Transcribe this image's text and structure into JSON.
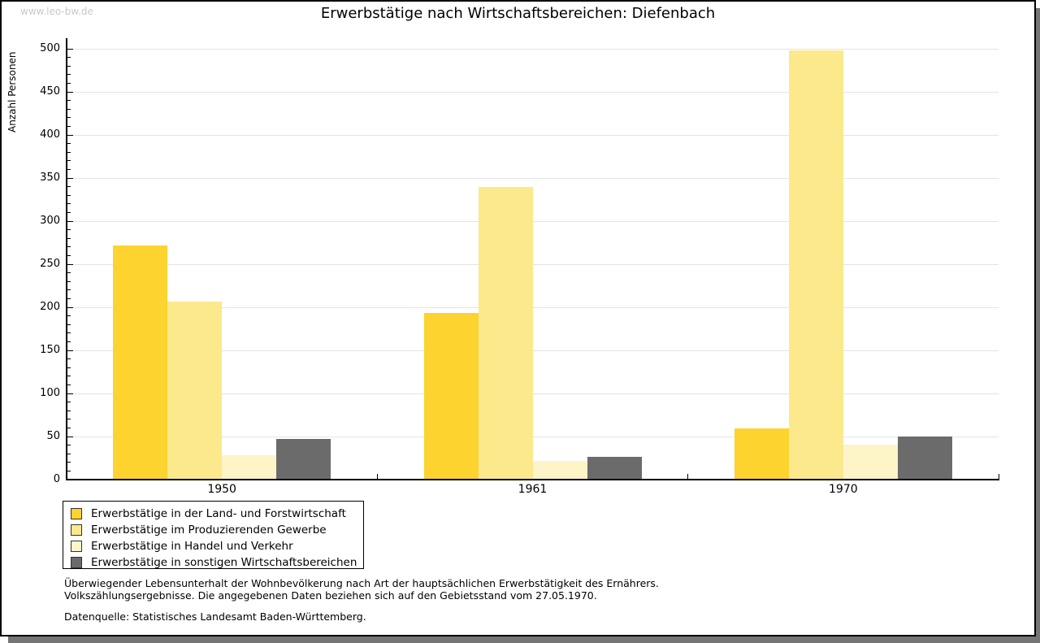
{
  "watermark": "www.leo-bw.de",
  "chart_data": {
    "type": "bar",
    "title": "Erwerbstätige nach Wirtschaftsbereichen: Diefenbach",
    "ylabel": "Anzahl Personen",
    "xlabel": "",
    "categories": [
      "1950",
      "1961",
      "1970"
    ],
    "series": [
      {
        "name": "Erwerbstätige in der Land- und Forstwirtschaft",
        "color": "#fcd32f",
        "values": [
          272,
          193,
          59
        ]
      },
      {
        "name": "Erwerbstätige im Produzierenden Gewerbe",
        "color": "#fbe98c",
        "values": [
          207,
          340,
          498
        ]
      },
      {
        "name": "Erwerbstätige in Handel und Verkehr",
        "color": "#fdf4c8",
        "values": [
          28,
          22,
          41
        ]
      },
      {
        "name": "Erwerbstätige in sonstigen Wirtschaftsbereichen",
        "color": "#6b6b6b",
        "values": [
          47,
          26,
          50
        ]
      }
    ],
    "ylim": [
      0,
      500
    ],
    "ytick_step": 50,
    "ytick_minor_step": 10,
    "grid": true,
    "legend_position": "bottom-left",
    "colors": {
      "axis": "#000000",
      "gridline": "#e4e4e4",
      "watermark_text": "#c9c9c9",
      "frame_shadow": "#757575"
    }
  },
  "footer": {
    "line1": "Überwiegender Lebensunterhalt der Wohnbevölkerung nach Art der hauptsächlichen Erwerbstätigkeit des Ernährers.",
    "line2": "Volkszählungsergebnisse. Die angegebenen Daten beziehen sich auf den Gebietsstand vom 27.05.1970.",
    "source": "Datenquelle: Statistisches Landesamt Baden-Württemberg."
  }
}
